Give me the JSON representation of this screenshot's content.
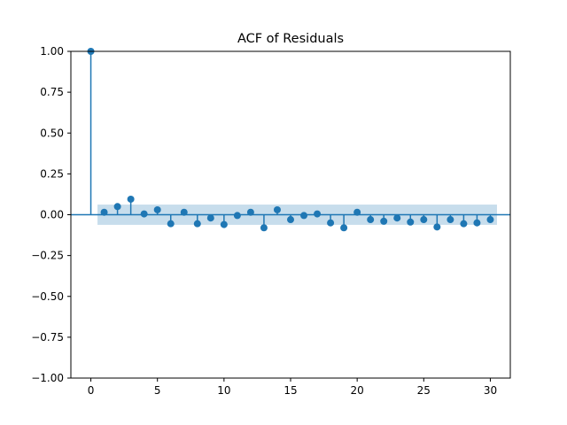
{
  "chart_data": {
    "type": "scatter",
    "title": "ACF of Residuals",
    "xlabel": "",
    "ylabel": "",
    "xlim": [
      -1.5,
      31.5
    ],
    "ylim": [
      -1.0,
      1.0
    ],
    "xticks": [
      0,
      5,
      10,
      15,
      20,
      25,
      30
    ],
    "yticks": [
      -1.0,
      -0.75,
      -0.5,
      -0.25,
      0.0,
      0.25,
      0.5,
      0.75,
      1.0
    ],
    "xtick_labels": [
      "0",
      "5",
      "10",
      "15",
      "20",
      "25",
      "30"
    ],
    "ytick_labels": [
      "−1.00",
      "−0.75",
      "−0.50",
      "−0.25",
      "0.00",
      "0.25",
      "0.50",
      "0.75",
      "1.00"
    ],
    "grid": false,
    "confidence_band": {
      "lower": -0.062,
      "upper": 0.062,
      "x_start": 0.5,
      "x_end": 30.5,
      "color": "#1f77b4",
      "opacity": 0.25
    },
    "series": [
      {
        "x": [
          0,
          1,
          2,
          3,
          4,
          5,
          6,
          7,
          8,
          9,
          10,
          11,
          12,
          13,
          14,
          15,
          16,
          17,
          18,
          19,
          20,
          21,
          22,
          23,
          24,
          25,
          26,
          27,
          28,
          29,
          30
        ],
        "values": [
          1.0,
          0.015,
          0.05,
          0.095,
          0.005,
          0.03,
          -0.055,
          0.015,
          -0.055,
          -0.02,
          -0.06,
          -0.005,
          0.015,
          -0.08,
          0.03,
          -0.03,
          -0.005,
          0.005,
          -0.05,
          -0.08,
          0.015,
          -0.03,
          -0.04,
          -0.02,
          -0.045,
          -0.03,
          -0.075,
          -0.03,
          -0.055,
          -0.05,
          -0.03
        ]
      }
    ],
    "colors": {
      "marker": "#1f77b4",
      "stem": "#1f77b4",
      "zero_line": "#1f77b4"
    }
  }
}
